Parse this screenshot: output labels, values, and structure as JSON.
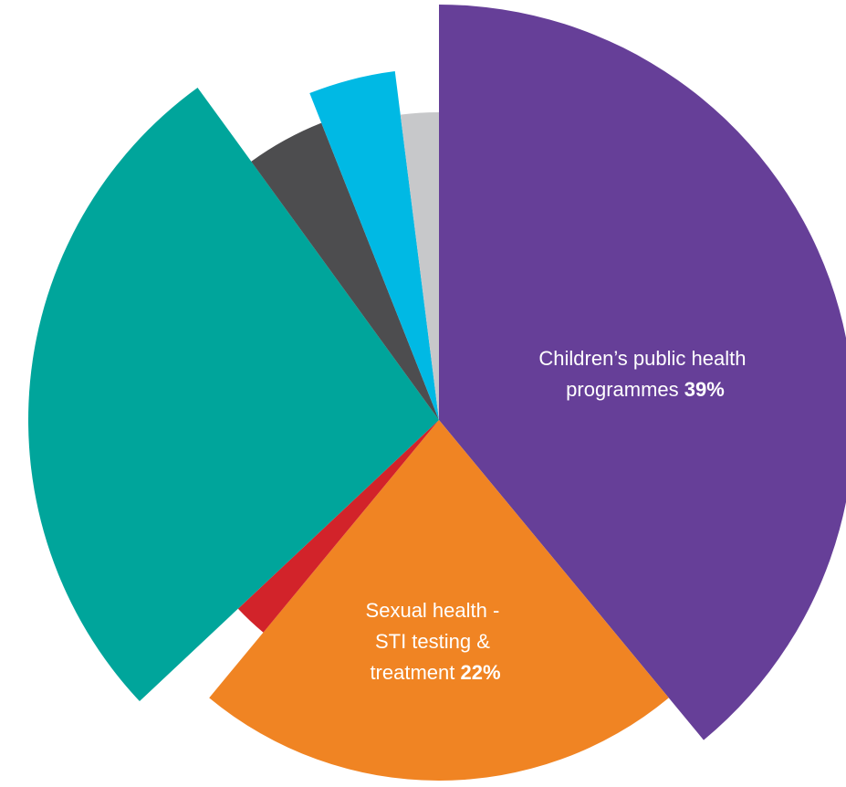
{
  "chart_data": {
    "type": "pie",
    "variant": "polar-area (exploded slices of varying radius)",
    "title": "",
    "start_angle": "12 o'clock, clockwise",
    "slices": [
      {
        "name": "Children’s public health programmes",
        "percent_label": "39%",
        "value": 39,
        "color": "#663f98"
      },
      {
        "name": "Sexual health - STI testing & treatment",
        "percent_label": "22%",
        "value": 22,
        "color": "#f08423"
      },
      {
        "name": "",
        "percent_label": "",
        "value": 2,
        "color": "#d2232a"
      },
      {
        "name": "",
        "percent_label": "",
        "value": 27,
        "color": "#00a59b"
      },
      {
        "name": "",
        "percent_label": "",
        "value": 4,
        "color": "#4d4d4f"
      },
      {
        "name": "",
        "percent_label": "",
        "value": 4,
        "color": "#00b9e4"
      },
      {
        "name": "",
        "percent_label": "",
        "value": 2,
        "color": "#c7c8ca"
      }
    ],
    "labels": [
      {
        "lines": [
          "Children’s public health",
          "programmes"
        ],
        "pct": "39%"
      },
      {
        "lines": [
          "Sexual health -",
          "STI testing &"
        ],
        "last": "treatment",
        "pct": "22%"
      }
    ]
  }
}
